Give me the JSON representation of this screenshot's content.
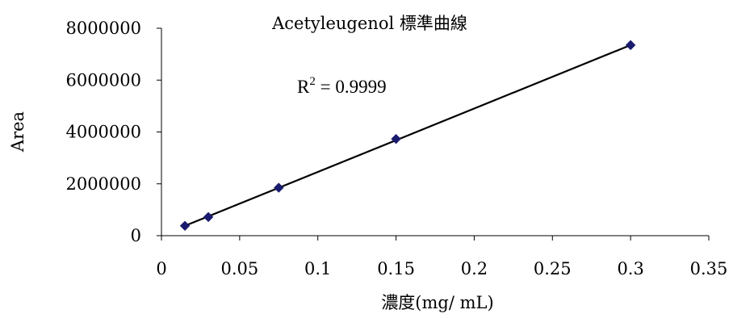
{
  "chart_data": {
    "type": "scatter",
    "title": "Acetyleugenol 標準曲線",
    "xlabel": "濃度(mg/ mL)",
    "ylabel": "Area",
    "xlim": [
      0,
      0.35
    ],
    "ylim": [
      0,
      8000000
    ],
    "x_ticks": [
      0,
      0.05,
      0.1,
      0.15,
      0.2,
      0.25,
      0.3,
      0.35
    ],
    "y_ticks": [
      0,
      2000000,
      4000000,
      6000000,
      8000000
    ],
    "x_tick_labels": [
      "0",
      "0.05",
      "0.1",
      "0.15",
      "0.2",
      "0.25",
      "0.3",
      "0.35"
    ],
    "y_tick_labels": [
      "0",
      "2000000",
      "4000000",
      "6000000",
      "8000000"
    ],
    "grid": false,
    "legend": "none",
    "series": [
      {
        "x": [
          0.015,
          0.03,
          0.075,
          0.15,
          0.3
        ],
        "y": [
          380000,
          720000,
          1850000,
          3730000,
          7350000
        ],
        "marker": "diamond",
        "color": "#1a1a6e"
      }
    ],
    "trendline": {
      "x": [
        0.015,
        0.3
      ],
      "y": [
        380000,
        7350000
      ],
      "color": "#000000"
    },
    "annotation": {
      "r_label": "R",
      "superscript": "2",
      "value_text": " = 0.9999"
    }
  }
}
